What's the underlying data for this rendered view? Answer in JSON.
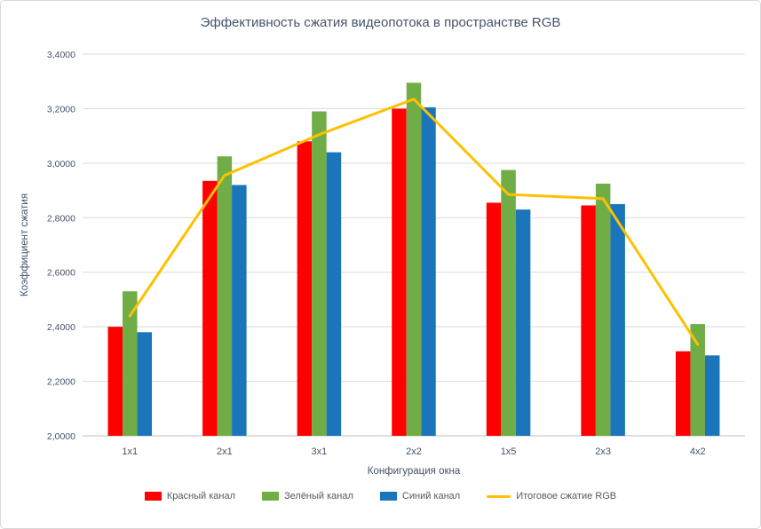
{
  "chart_data": {
    "type": "bar",
    "title": "Эффективность сжатия видеопотока в пространстве RGB",
    "xlabel": "Конфигурация окна",
    "ylabel": "Коэффициент  сжатия",
    "categories": [
      "1x1",
      "2x1",
      "3x1",
      "2x2",
      "1x5",
      "2x3",
      "4x2"
    ],
    "ylim": [
      2.0,
      3.4
    ],
    "ytick_step": 0.2,
    "ytick_labels": [
      "2,0000",
      "2,2000",
      "2,4000",
      "2,6000",
      "2,8000",
      "3,0000",
      "3,2000",
      "3,4000"
    ],
    "grid": true,
    "legend_position": "bottom",
    "colors": {
      "text": "#44546a",
      "grid": "#d9d9d9",
      "axis": "#bfbfbf",
      "background": "#ffffff"
    },
    "series": [
      {
        "name": "Красный канал",
        "type": "bar",
        "color": "#ff0000",
        "values": [
          2.4,
          2.935,
          3.08,
          3.2,
          2.855,
          2.845,
          2.31
        ]
      },
      {
        "name": "Зелёный канал",
        "type": "bar",
        "color": "#70ad47",
        "values": [
          2.53,
          3.025,
          3.19,
          3.295,
          2.975,
          2.925,
          2.41
        ]
      },
      {
        "name": "Синий  канал",
        "type": "bar",
        "color": "#1b75bb",
        "values": [
          2.38,
          2.92,
          3.04,
          3.205,
          2.83,
          2.85,
          2.295
        ]
      },
      {
        "name": "Итоговое сжатие RGB",
        "type": "line",
        "color": "#ffc000",
        "values": [
          2.44,
          2.955,
          3.105,
          3.235,
          2.885,
          2.87,
          2.335
        ]
      }
    ]
  }
}
